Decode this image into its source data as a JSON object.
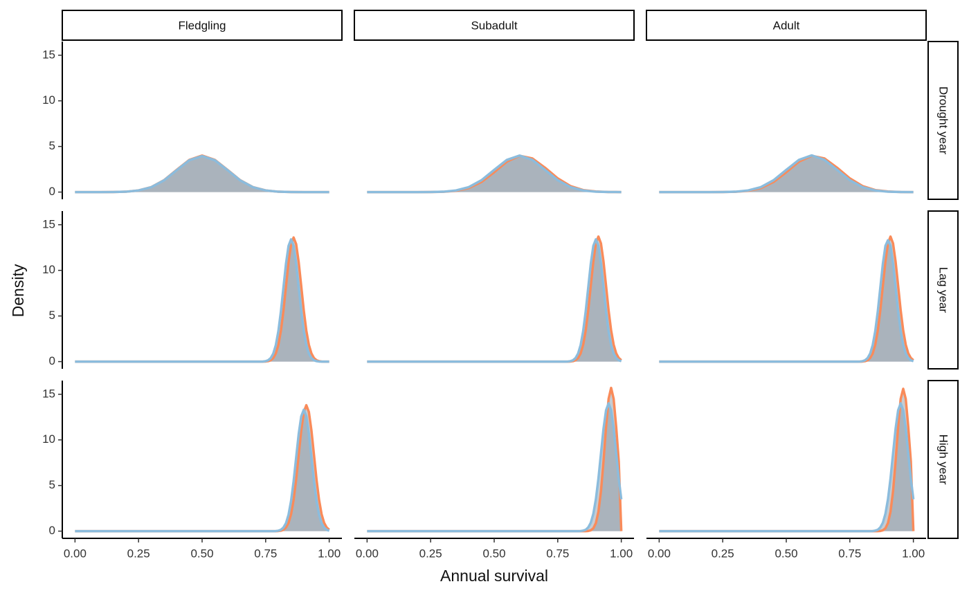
{
  "chart_data": {
    "type": "density",
    "x_label": "Annual survival",
    "y_label": "Density",
    "columns": [
      "Fledgling",
      "Subadult",
      "Adult"
    ],
    "rows": [
      "Drought year",
      "Lag year",
      "High year"
    ],
    "xlim": [
      -0.05,
      1.05
    ],
    "ylim": [
      -0.79,
      16.5
    ],
    "xticks": [
      {
        "value": 0,
        "label": "0.00"
      },
      {
        "value": 0.25,
        "label": "0.25"
      },
      {
        "value": 0.5,
        "label": "0.50"
      },
      {
        "value": 0.75,
        "label": "0.75"
      },
      {
        "value": 1,
        "label": "1.00"
      }
    ],
    "yticks": [
      0,
      5,
      10,
      15
    ],
    "fill": "#8e9aa6",
    "fill_opacity": 0.5,
    "panels": [
      [
        {
          "x": [
            0,
            0.05,
            0.1,
            0.15,
            0.2,
            0.25,
            0.3,
            0.35,
            0.4,
            0.45,
            0.5,
            0.55,
            0.6,
            0.65,
            0.7,
            0.75,
            0.8,
            0.85,
            0.9,
            0.95,
            1
          ],
          "series": [
            {
              "color": "#f98b5a",
              "values": [
                0,
                0,
                0,
                0.01,
                0.04,
                0.18,
                0.54,
                1.3,
                2.43,
                3.53,
                4,
                3.53,
                2.43,
                1.3,
                0.54,
                0.18,
                0.04,
                0.01,
                0,
                0,
                0
              ]
            },
            {
              "color": "#8bbcdd",
              "values": [
                0,
                0,
                0,
                0.01,
                0.04,
                0.18,
                0.53,
                1.28,
                2.4,
                3.49,
                3.95,
                3.49,
                2.4,
                1.28,
                0.53,
                0.18,
                0.04,
                0.01,
                0,
                0,
                0
              ]
            }
          ]
        },
        {
          "x": [
            0,
            0.05,
            0.1,
            0.15,
            0.2,
            0.25,
            0.3,
            0.35,
            0.4,
            0.45,
            0.5,
            0.55,
            0.6,
            0.65,
            0.7,
            0.75,
            0.8,
            0.85,
            0.9,
            0.95,
            1
          ],
          "series": [
            {
              "color": "#f98b5a",
              "values": [
                0,
                0,
                0,
                0,
                0,
                0.01,
                0.03,
                0.14,
                0.44,
                1.11,
                2.18,
                3.34,
                3.98,
                3.69,
                2.67,
                1.5,
                0.66,
                0.22,
                0.06,
                0.01,
                0
              ]
            },
            {
              "color": "#8bbcdd",
              "values": [
                0,
                0,
                0,
                0,
                0,
                0.01,
                0.04,
                0.18,
                0.54,
                1.3,
                2.43,
                3.53,
                4,
                3.53,
                2.43,
                1.3,
                0.54,
                0.18,
                0.04,
                0.01,
                0
              ]
            }
          ]
        },
        {
          "x": [
            0,
            0.05,
            0.1,
            0.15,
            0.2,
            0.25,
            0.3,
            0.35,
            0.4,
            0.45,
            0.5,
            0.55,
            0.6,
            0.65,
            0.7,
            0.75,
            0.8,
            0.85,
            0.9,
            0.95,
            1
          ],
          "series": [
            {
              "color": "#f98b5a",
              "values": [
                0,
                0,
                0,
                0,
                0,
                0.01,
                0.03,
                0.14,
                0.44,
                1.11,
                2.18,
                3.34,
                3.98,
                3.69,
                2.67,
                1.5,
                0.66,
                0.22,
                0.06,
                0.01,
                0
              ]
            },
            {
              "color": "#8bbcdd",
              "values": [
                0,
                0,
                0,
                0,
                0,
                0.01,
                0.04,
                0.18,
                0.54,
                1.3,
                2.43,
                3.53,
                4.02,
                3.53,
                2.43,
                1.3,
                0.54,
                0.18,
                0.04,
                0.01,
                0
              ]
            }
          ]
        }
      ],
      [
        {
          "x": [
            0,
            0.7,
            0.71,
            0.72,
            0.73,
            0.74,
            0.75,
            0.76,
            0.77,
            0.78,
            0.79,
            0.8,
            0.81,
            0.82,
            0.83,
            0.84,
            0.85,
            0.86,
            0.87,
            0.88,
            0.89,
            0.9,
            0.91,
            0.92,
            0.93,
            0.94,
            0.95,
            0.96,
            0.97,
            0.98,
            0.99,
            1
          ],
          "series": [
            {
              "color": "#f98b5a",
              "values": [
                0,
                0,
                0,
                0,
                0,
                0,
                0.01,
                0.05,
                0.15,
                0.39,
                0.9,
                1.84,
                3.39,
                5.59,
                8.26,
                10.89,
                12.87,
                13.6,
                12.87,
                10.89,
                8.26,
                5.59,
                3.39,
                1.84,
                0.9,
                0.39,
                0.15,
                0.05,
                0.01,
                0,
                0,
                0
              ]
            },
            {
              "color": "#8bbcdd",
              "values": [
                0,
                0,
                0,
                0,
                0,
                0.01,
                0.05,
                0.15,
                0.39,
                0.88,
                1.81,
                3.34,
                5.51,
                8.13,
                10.73,
                12.68,
                13.4,
                12.68,
                10.73,
                8.13,
                5.51,
                3.34,
                1.81,
                0.88,
                0.39,
                0.15,
                0.05,
                0.01,
                0,
                0,
                0,
                0
              ]
            }
          ]
        },
        {
          "x": [
            0,
            0.7,
            0.71,
            0.72,
            0.73,
            0.74,
            0.75,
            0.76,
            0.77,
            0.78,
            0.79,
            0.8,
            0.81,
            0.82,
            0.83,
            0.84,
            0.85,
            0.86,
            0.87,
            0.88,
            0.89,
            0.9,
            0.91,
            0.92,
            0.93,
            0.94,
            0.95,
            0.96,
            0.97,
            0.98,
            0.99,
            1
          ],
          "series": [
            {
              "color": "#f98b5a",
              "values": [
                0,
                0,
                0,
                0,
                0,
                0,
                0,
                0,
                0,
                0,
                0,
                0.01,
                0.05,
                0.15,
                0.4,
                0.9,
                1.85,
                3.41,
                5.63,
                8.32,
                10.97,
                12.96,
                13.7,
                12.96,
                10.97,
                8.32,
                5.63,
                3.41,
                1.85,
                0.9,
                0.4,
                0.15
              ]
            },
            {
              "color": "#8bbcdd",
              "values": [
                0,
                0,
                0,
                0,
                0,
                0,
                0,
                0,
                0,
                0,
                0.01,
                0.05,
                0.15,
                0.39,
                0.88,
                1.81,
                3.34,
                5.51,
                8.13,
                10.73,
                12.68,
                13.4,
                12.68,
                10.73,
                8.13,
                5.51,
                3.34,
                1.81,
                0.88,
                0.39,
                0.15,
                0.05
              ]
            }
          ]
        },
        {
          "x": [
            0,
            0.7,
            0.71,
            0.72,
            0.73,
            0.74,
            0.75,
            0.76,
            0.77,
            0.78,
            0.79,
            0.8,
            0.81,
            0.82,
            0.83,
            0.84,
            0.85,
            0.86,
            0.87,
            0.88,
            0.89,
            0.9,
            0.91,
            0.92,
            0.93,
            0.94,
            0.95,
            0.96,
            0.97,
            0.98,
            0.99,
            1
          ],
          "series": [
            {
              "color": "#f98b5a",
              "values": [
                0,
                0,
                0,
                0,
                0,
                0,
                0,
                0,
                0,
                0,
                0,
                0.01,
                0.05,
                0.15,
                0.4,
                0.9,
                1.85,
                3.41,
                5.63,
                8.32,
                10.97,
                12.96,
                13.7,
                12.96,
                10.97,
                8.32,
                5.63,
                3.41,
                1.85,
                0.9,
                0.4,
                0.15
              ]
            },
            {
              "color": "#8bbcdd",
              "values": [
                0,
                0,
                0,
                0,
                0,
                0,
                0,
                0,
                0,
                0,
                0.01,
                0.05,
                0.15,
                0.39,
                0.88,
                1.81,
                3.34,
                5.51,
                8.13,
                10.73,
                12.68,
                13.3,
                12.68,
                10.73,
                8.13,
                5.51,
                3.34,
                1.81,
                0.88,
                0.39,
                0.15,
                0.05
              ]
            }
          ]
        }
      ],
      [
        {
          "x": [
            0,
            0.7,
            0.71,
            0.72,
            0.73,
            0.74,
            0.75,
            0.76,
            0.77,
            0.78,
            0.79,
            0.8,
            0.81,
            0.82,
            0.83,
            0.84,
            0.85,
            0.86,
            0.87,
            0.88,
            0.89,
            0.9,
            0.91,
            0.92,
            0.93,
            0.94,
            0.95,
            0.96,
            0.97,
            0.98,
            0.99,
            1
          ],
          "series": [
            {
              "color": "#f98b5a",
              "values": [
                0,
                0,
                0,
                0,
                0,
                0,
                0,
                0,
                0,
                0,
                0,
                0.01,
                0.05,
                0.15,
                0.4,
                0.91,
                1.86,
                3.44,
                5.67,
                8.38,
                11.05,
                13.06,
                13.8,
                13.06,
                11.05,
                8.38,
                5.67,
                3.44,
                1.86,
                0.91,
                0.4,
                0.15
              ]
            },
            {
              "color": "#8bbcdd",
              "values": [
                0,
                0,
                0,
                0,
                0,
                0,
                0,
                0,
                0,
                0,
                0.01,
                0.05,
                0.15,
                0.39,
                0.87,
                1.8,
                3.32,
                5.47,
                8.07,
                10.65,
                12.58,
                13.3,
                12.58,
                10.65,
                8.07,
                5.47,
                3.32,
                1.8,
                0.87,
                0.39,
                0.15,
                0.05
              ]
            }
          ]
        },
        {
          "x": [
            0,
            0.7,
            0.71,
            0.72,
            0.73,
            0.74,
            0.75,
            0.76,
            0.77,
            0.78,
            0.79,
            0.8,
            0.81,
            0.82,
            0.83,
            0.84,
            0.85,
            0.86,
            0.87,
            0.88,
            0.89,
            0.9,
            0.91,
            0.92,
            0.93,
            0.94,
            0.95,
            0.96,
            0.97,
            0.98,
            0.99,
            1
          ],
          "series": [
            {
              "color": "#f98b5a",
              "values": [
                0,
                0,
                0,
                0,
                0,
                0,
                0,
                0,
                0,
                0,
                0,
                0,
                0,
                0,
                0,
                0,
                0,
                0,
                0.02,
                0.09,
                0.31,
                0.88,
                2.12,
                4.36,
                7.65,
                11.4,
                14.49,
                15.7,
                14.49,
                11.4,
                7.65,
                0
              ]
            },
            {
              "color": "#8bbcdd",
              "values": [
                0,
                0,
                0,
                0,
                0,
                0,
                0,
                0,
                0,
                0,
                0,
                0,
                0,
                0,
                0,
                0.01,
                0.06,
                0.15,
                0.41,
                0.92,
                1.89,
                3.49,
                5.75,
                8.5,
                11.21,
                13.24,
                14,
                13.24,
                11.21,
                8.5,
                5.75,
                3.49
              ]
            }
          ]
        },
        {
          "x": [
            0,
            0.7,
            0.71,
            0.72,
            0.73,
            0.74,
            0.75,
            0.76,
            0.77,
            0.78,
            0.79,
            0.8,
            0.81,
            0.82,
            0.83,
            0.84,
            0.85,
            0.86,
            0.87,
            0.88,
            0.89,
            0.9,
            0.91,
            0.92,
            0.93,
            0.94,
            0.95,
            0.96,
            0.97,
            0.98,
            0.99,
            1
          ],
          "series": [
            {
              "color": "#f98b5a",
              "values": [
                0,
                0,
                0,
                0,
                0,
                0,
                0,
                0,
                0,
                0,
                0,
                0,
                0,
                0,
                0,
                0,
                0,
                0,
                0.02,
                0.09,
                0.31,
                0.88,
                2.12,
                4.36,
                7.65,
                11.4,
                14.49,
                15.6,
                14.49,
                11.4,
                7.65,
                0
              ]
            },
            {
              "color": "#8bbcdd",
              "values": [
                0,
                0,
                0,
                0,
                0,
                0,
                0,
                0,
                0,
                0,
                0,
                0,
                0,
                0,
                0,
                0.01,
                0.06,
                0.15,
                0.41,
                0.92,
                1.89,
                3.49,
                5.75,
                8.5,
                11.21,
                13.24,
                14,
                13.24,
                11.21,
                8.5,
                5.75,
                3.49
              ]
            }
          ]
        }
      ]
    ]
  }
}
